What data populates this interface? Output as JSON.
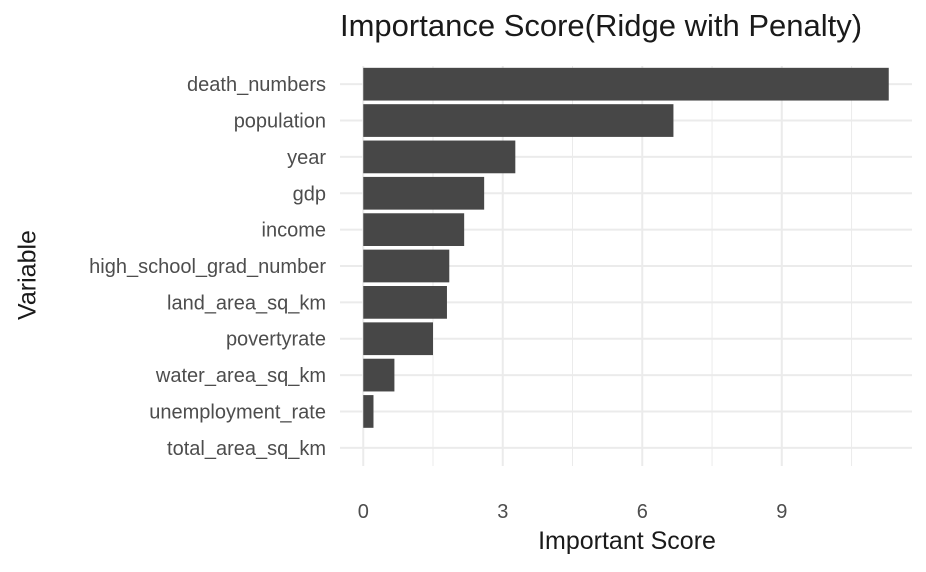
{
  "chart_data": {
    "type": "bar",
    "orientation": "horizontal",
    "title": "Importance Score(Ridge with Penalty)",
    "xlabel": "Important Score",
    "ylabel": "Variable",
    "categories": [
      "death_numbers",
      "population",
      "year",
      "gdp",
      "income",
      "high_school_grad_number",
      "land_area_sq_km",
      "povertyrate",
      "water_area_sq_km",
      "unemployment_rate",
      "total_area_sq_km"
    ],
    "values": [
      11.3,
      6.67,
      3.27,
      2.6,
      2.17,
      1.85,
      1.8,
      1.5,
      0.67,
      0.22,
      0.0
    ],
    "xticks": [
      0,
      3,
      6,
      9
    ],
    "xlim": [
      -0.5,
      11.8
    ],
    "grid": true,
    "legend": "none",
    "colors": {
      "bar": "#474747",
      "grid": "#ebebeb",
      "text": "#4d4d4d",
      "title": "#1a1a1a"
    }
  }
}
